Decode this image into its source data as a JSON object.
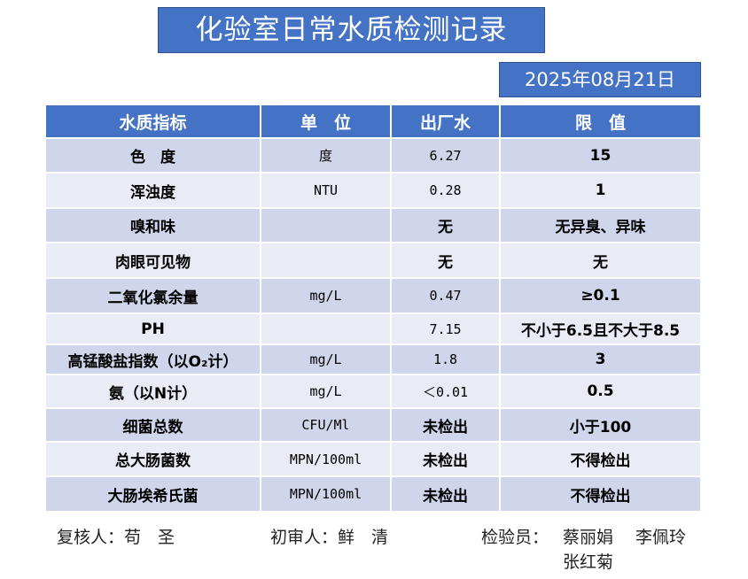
{
  "title": "化验室日常水质检测记录",
  "date": "2025年08月21日",
  "colors": {
    "header": "#4472c4",
    "row_odd": "#cfd5ea",
    "row_even": "#e9ebf5"
  },
  "headers": [
    "水质指标",
    "单　位",
    "出厂水",
    "限　值"
  ],
  "rows": [
    [
      "色　度",
      "度",
      "6.27",
      "15"
    ],
    [
      "浑浊度",
      "NTU",
      "0.28",
      "1"
    ],
    [
      "嗅和味",
      "",
      "无",
      "无异臭、异味"
    ],
    [
      "肉眼可见物",
      "",
      "无",
      "无"
    ],
    [
      "二氧化氯余量",
      "mg/L",
      "0.47",
      "≥0.1"
    ],
    [
      "PH",
      "",
      "7.15",
      "不小于6.5且不大于8.5"
    ],
    [
      "高锰酸盐指数（以O₂计）",
      "mg/L",
      "1.8",
      "3"
    ],
    [
      "氨（以N计）",
      "mg/L",
      "＜0.01",
      "0.5"
    ],
    [
      "细菌总数",
      "CFU/Ml",
      "未检出",
      "小于100"
    ],
    [
      "总大肠菌数",
      "MPN/100ml",
      "未检出",
      "不得检出"
    ],
    [
      "大肠埃希氏菌",
      "MPN/100ml",
      "未检出",
      "不得检出"
    ]
  ],
  "signatures": {
    "reviewer": "复核人：苟　圣",
    "first_reviewer": "初审人：鲜　清",
    "inspector_label": "检验员：",
    "inspectors_line1": "蔡丽娟　 李佩玲",
    "inspectors_line2": "张红菊"
  }
}
